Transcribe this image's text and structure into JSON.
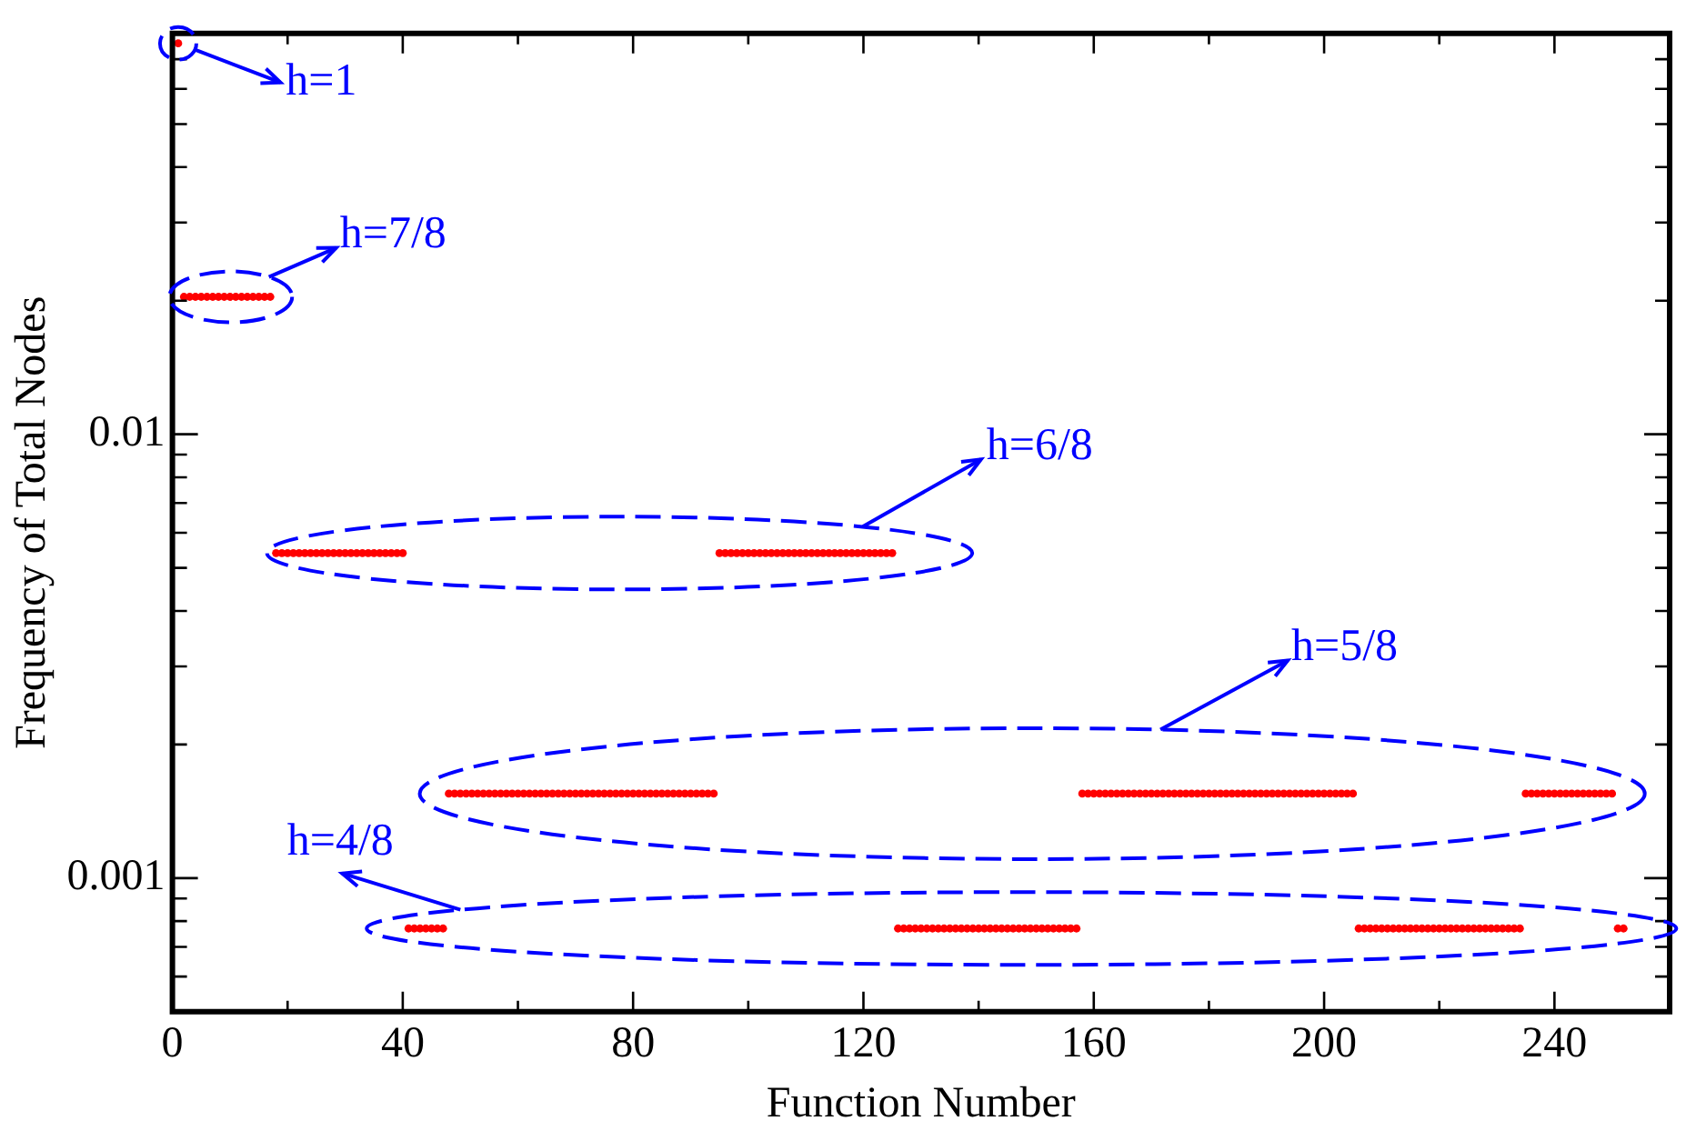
{
  "chart_data": {
    "type": "scatter",
    "xlabel": "Function Number",
    "ylabel": "Frequency of Total Nodes",
    "log": "y",
    "grid": false,
    "legend": false,
    "marker": "circle",
    "xlim": [
      0,
      260
    ],
    "xticks": [
      0,
      {
        "value": 20,
        "label": null
      },
      40,
      {
        "value": 60,
        "label": null
      },
      80,
      {
        "value": 100,
        "label": null
      },
      120,
      {
        "value": 140,
        "label": null
      },
      160,
      {
        "value": 180,
        "label": null
      },
      200,
      {
        "value": 220,
        "label": null
      },
      240
    ],
    "ylim": [
      0.0005,
      0.08
    ],
    "yticks": [
      {
        "value": 0.0005,
        "label": null
      },
      {
        "value": 0.0006,
        "label": null
      },
      {
        "value": 0.0007,
        "label": null
      },
      {
        "value": 0.0008,
        "label": null
      },
      {
        "value": 0.0009,
        "label": null
      },
      0.001,
      {
        "value": 0.002,
        "label": null
      },
      {
        "value": 0.003,
        "label": null
      },
      {
        "value": 0.004,
        "label": null
      },
      {
        "value": 0.005,
        "label": null
      },
      {
        "value": 0.006,
        "label": null
      },
      {
        "value": 0.007,
        "label": null
      },
      {
        "value": 0.008,
        "label": null
      },
      {
        "value": 0.009,
        "label": null
      },
      0.01,
      {
        "value": 0.02,
        "label": null
      },
      {
        "value": 0.03,
        "label": null
      },
      {
        "value": 0.04,
        "label": null
      },
      {
        "value": 0.05,
        "label": null
      },
      {
        "value": 0.06,
        "label": null
      },
      {
        "value": 0.07,
        "label": null
      },
      {
        "value": 0.08,
        "label": null
      }
    ],
    "annotations": [
      "h=1",
      "h=7/8",
      "h=6/8",
      "h=5/8",
      "h=4/8"
    ],
    "series": [
      {
        "color": "#ff0000",
        "x": [
          1
        ],
        "values": [
          0.076
        ]
      },
      {
        "color": "#ff0000",
        "x": [
          2,
          3,
          4,
          5,
          6,
          7,
          8,
          9,
          10,
          11,
          12,
          13,
          14,
          15,
          16,
          17
        ],
        "values": [
          0.0204,
          0.0204,
          0.0204,
          0.0204,
          0.0204,
          0.0204,
          0.0204,
          0.0204,
          0.0204,
          0.0204,
          0.0204,
          0.0204,
          0.0204,
          0.0204,
          0.0204,
          0.0204
        ]
      },
      {
        "color": "#ff0000",
        "x": [
          18,
          19,
          20,
          21,
          22,
          23,
          24,
          25,
          26,
          27,
          28,
          29,
          30,
          31,
          32,
          33,
          34,
          35,
          36,
          37,
          38,
          39,
          40,
          95,
          96,
          97,
          98,
          99,
          100,
          101,
          102,
          103,
          104,
          105,
          106,
          107,
          108,
          109,
          110,
          111,
          112,
          113,
          114,
          115,
          116,
          117,
          118,
          119,
          120,
          121,
          122,
          123,
          124,
          125
        ],
        "values": [
          0.0054,
          0.0054,
          0.0054,
          0.0054,
          0.0054,
          0.0054,
          0.0054,
          0.0054,
          0.0054,
          0.0054,
          0.0054,
          0.0054,
          0.0054,
          0.0054,
          0.0054,
          0.0054,
          0.0054,
          0.0054,
          0.0054,
          0.0054,
          0.0054,
          0.0054,
          0.0054,
          0.0054,
          0.0054,
          0.0054,
          0.0054,
          0.0054,
          0.0054,
          0.0054,
          0.0054,
          0.0054,
          0.0054,
          0.0054,
          0.0054,
          0.0054,
          0.0054,
          0.0054,
          0.0054,
          0.0054,
          0.0054,
          0.0054,
          0.0054,
          0.0054,
          0.0054,
          0.0054,
          0.0054,
          0.0054,
          0.0054,
          0.0054,
          0.0054,
          0.0054,
          0.0054,
          0.0054
        ]
      },
      {
        "color": "#ff0000",
        "x": [
          48,
          49,
          50,
          51,
          52,
          53,
          54,
          55,
          56,
          57,
          58,
          59,
          60,
          61,
          62,
          63,
          64,
          65,
          66,
          67,
          68,
          69,
          70,
          71,
          72,
          73,
          74,
          75,
          76,
          77,
          78,
          79,
          80,
          81,
          82,
          83,
          84,
          85,
          86,
          87,
          88,
          89,
          90,
          91,
          92,
          93,
          94,
          158,
          159,
          160,
          161,
          162,
          163,
          164,
          165,
          166,
          167,
          168,
          169,
          170,
          171,
          172,
          173,
          174,
          175,
          176,
          177,
          178,
          179,
          180,
          181,
          182,
          183,
          184,
          185,
          186,
          187,
          188,
          189,
          190,
          191,
          192,
          193,
          194,
          195,
          196,
          197,
          198,
          199,
          200,
          201,
          202,
          203,
          204,
          205,
          235,
          236,
          237,
          238,
          239,
          240,
          241,
          242,
          243,
          244,
          245,
          246,
          247,
          248,
          249,
          250
        ],
        "values": [
          0.00155,
          0.00155,
          0.00155,
          0.00155,
          0.00155,
          0.00155,
          0.00155,
          0.00155,
          0.00155,
          0.00155,
          0.00155,
          0.00155,
          0.00155,
          0.00155,
          0.00155,
          0.00155,
          0.00155,
          0.00155,
          0.00155,
          0.00155,
          0.00155,
          0.00155,
          0.00155,
          0.00155,
          0.00155,
          0.00155,
          0.00155,
          0.00155,
          0.00155,
          0.00155,
          0.00155,
          0.00155,
          0.00155,
          0.00155,
          0.00155,
          0.00155,
          0.00155,
          0.00155,
          0.00155,
          0.00155,
          0.00155,
          0.00155,
          0.00155,
          0.00155,
          0.00155,
          0.00155,
          0.00155,
          0.00155,
          0.00155,
          0.00155,
          0.00155,
          0.00155,
          0.00155,
          0.00155,
          0.00155,
          0.00155,
          0.00155,
          0.00155,
          0.00155,
          0.00155,
          0.00155,
          0.00155,
          0.00155,
          0.00155,
          0.00155,
          0.00155,
          0.00155,
          0.00155,
          0.00155,
          0.00155,
          0.00155,
          0.00155,
          0.00155,
          0.00155,
          0.00155,
          0.00155,
          0.00155,
          0.00155,
          0.00155,
          0.00155,
          0.00155,
          0.00155,
          0.00155,
          0.00155,
          0.00155,
          0.00155,
          0.00155,
          0.00155,
          0.00155,
          0.00155,
          0.00155,
          0.00155,
          0.00155,
          0.00155,
          0.00155,
          0.00155,
          0.00155,
          0.00155,
          0.00155,
          0.00155,
          0.00155,
          0.00155,
          0.00155,
          0.00155,
          0.00155,
          0.00155,
          0.00155,
          0.00155,
          0.00155,
          0.00155,
          0.00155
        ]
      },
      {
        "color": "#ff0000",
        "x": [
          41,
          42,
          43,
          44,
          45,
          46,
          47,
          126,
          127,
          128,
          129,
          130,
          131,
          132,
          133,
          134,
          135,
          136,
          137,
          138,
          139,
          140,
          141,
          142,
          143,
          144,
          145,
          146,
          147,
          148,
          149,
          150,
          151,
          152,
          153,
          154,
          155,
          156,
          157,
          206,
          207,
          208,
          209,
          210,
          211,
          212,
          213,
          214,
          215,
          216,
          217,
          218,
          219,
          220,
          221,
          222,
          223,
          224,
          225,
          226,
          227,
          228,
          229,
          230,
          231,
          232,
          233,
          234,
          251,
          252
        ],
        "values": [
          0.00077,
          0.00077,
          0.00077,
          0.00077,
          0.00077,
          0.00077,
          0.00077,
          0.00077,
          0.00077,
          0.00077,
          0.00077,
          0.00077,
          0.00077,
          0.00077,
          0.00077,
          0.00077,
          0.00077,
          0.00077,
          0.00077,
          0.00077,
          0.00077,
          0.00077,
          0.00077,
          0.00077,
          0.00077,
          0.00077,
          0.00077,
          0.00077,
          0.00077,
          0.00077,
          0.00077,
          0.00077,
          0.00077,
          0.00077,
          0.00077,
          0.00077,
          0.00077,
          0.00077,
          0.00077,
          0.00077,
          0.00077,
          0.00077,
          0.00077,
          0.00077,
          0.00077,
          0.00077,
          0.00077,
          0.00077,
          0.00077,
          0.00077,
          0.00077,
          0.00077,
          0.00077,
          0.00077,
          0.00077,
          0.00077,
          0.00077,
          0.00077,
          0.00077,
          0.00077,
          0.00077,
          0.00077,
          0.00077,
          0.00077,
          0.00077,
          0.00077,
          0.00077,
          0.00077,
          0.00077,
          0.00077
        ]
      }
    ]
  }
}
